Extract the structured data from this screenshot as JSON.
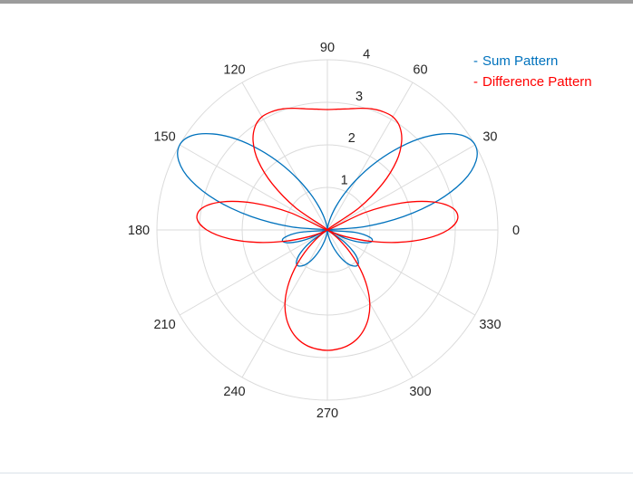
{
  "window": {
    "top_border_color": "#9c9c9c",
    "bottom_border_color": "#d9e1e9",
    "background": "#ffffff"
  },
  "legend": {
    "position": "northeast",
    "items": [
      {
        "marker": "-",
        "label": "Sum Pattern",
        "color": "#0072BD"
      },
      {
        "marker": "-",
        "label": "Difference Pattern",
        "color": "#FF0000"
      }
    ]
  },
  "chart_data": {
    "type": "line",
    "projection": "polar",
    "title": "",
    "grid": true,
    "grid_color": "#dbdbdb",
    "label_color": "#262626",
    "theta_ticks_deg": [
      0,
      30,
      60,
      90,
      120,
      150,
      180,
      210,
      240,
      270,
      300,
      330
    ],
    "r_ticks": [
      1,
      2,
      3,
      4
    ],
    "rlim": [
      0,
      4
    ],
    "r_axis_location_deg": 80,
    "legend_position": "northeast",
    "theta_deg": [
      0,
      5,
      10,
      15,
      20,
      25,
      30,
      35,
      40,
      45,
      50,
      55,
      60,
      65,
      70,
      75,
      80,
      85,
      90,
      95,
      100,
      105,
      110,
      115,
      120,
      125,
      130,
      135,
      140,
      145,
      150,
      155,
      160,
      165,
      170,
      175,
      180,
      185,
      190,
      195,
      200,
      205,
      210,
      215,
      220,
      225,
      230,
      235,
      240,
      245,
      250,
      255,
      260,
      265,
      270,
      275,
      280,
      285,
      290,
      295,
      300,
      305,
      310,
      315,
      320,
      325,
      330,
      335,
      340,
      345,
      350,
      355,
      360
    ],
    "series": [
      {
        "name": "Sum Pattern",
        "color": "#0072BD",
        "r": [
          0.0,
          0.86,
          1.81,
          2.7,
          3.41,
          3.85,
          4.0,
          3.87,
          3.51,
          3.02,
          2.45,
          1.89,
          1.37,
          0.93,
          0.58,
          0.32,
          0.14,
          0.03,
          0.0,
          0.03,
          0.14,
          0.32,
          0.58,
          0.93,
          1.37,
          1.89,
          2.45,
          3.02,
          3.51,
          3.87,
          4.0,
          3.85,
          3.41,
          2.7,
          1.81,
          0.86,
          0.0,
          0.65,
          1.02,
          1.07,
          0.86,
          0.47,
          0.0,
          0.45,
          0.8,
          1.02,
          1.09,
          1.03,
          0.89,
          0.69,
          0.48,
          0.29,
          0.13,
          0.03,
          0.0,
          0.03,
          0.13,
          0.29,
          0.48,
          0.69,
          0.89,
          1.03,
          1.09,
          1.02,
          0.8,
          0.45,
          0.0,
          0.47,
          0.86,
          1.07,
          1.02,
          0.65,
          0.0
        ]
      },
      {
        "name": "Difference Pattern",
        "color": "#FF0000",
        "r": [
          2.83,
          3.07,
          2.98,
          2.55,
          1.85,
          0.96,
          0.0,
          0.91,
          1.69,
          2.3,
          2.71,
          2.96,
          3.07,
          3.07,
          3.03,
          2.96,
          2.89,
          2.85,
          2.83,
          2.85,
          2.89,
          2.96,
          3.03,
          3.07,
          3.07,
          2.96,
          2.71,
          2.3,
          1.69,
          0.91,
          0.0,
          0.96,
          1.85,
          2.55,
          2.98,
          3.07,
          2.83,
          2.33,
          1.68,
          1.02,
          0.47,
          0.12,
          0.0,
          0.11,
          0.39,
          0.77,
          1.2,
          1.62,
          1.99,
          2.28,
          2.5,
          2.66,
          2.76,
          2.81,
          2.83,
          2.81,
          2.76,
          2.66,
          2.5,
          2.28,
          1.99,
          1.62,
          1.2,
          0.77,
          0.39,
          0.11,
          0.0,
          0.12,
          0.47,
          1.02,
          1.68,
          2.33,
          2.83
        ]
      }
    ]
  }
}
